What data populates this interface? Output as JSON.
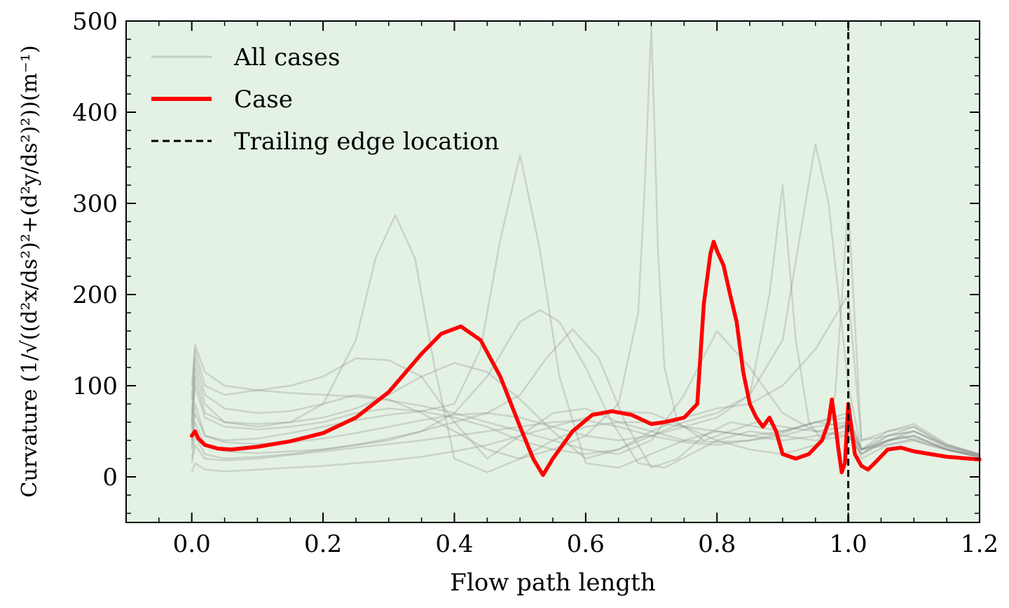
{
  "chart_data": {
    "type": "line",
    "xlabel": "Flow path length",
    "ylabel": "Curvature (1/√((d²x/ds²)²+(d²y/ds²)²))(m⁻¹)",
    "xlim": [
      -0.1,
      1.2
    ],
    "ylim": [
      -50,
      500
    ],
    "xticks": [
      "0.0",
      "0.2",
      "0.4",
      "0.6",
      "0.8",
      "1.0",
      "1.2"
    ],
    "yticks": [
      "0",
      "100",
      "200",
      "300",
      "400",
      "500"
    ],
    "background_color": "#e4f2e4",
    "legend_position": "upper-left",
    "legend": [
      {
        "label": "All cases",
        "style": "gray-faint-line"
      },
      {
        "label": "Case",
        "style": "red-thick-line"
      },
      {
        "label": "Trailing edge location",
        "style": "black-dashed-line"
      }
    ],
    "colors": {
      "all_cases": "#8c8c8c",
      "case": "#ff0000",
      "trailing_edge": "#000000"
    },
    "trailing_edge_x": 1.0,
    "case_series": {
      "name": "Case",
      "x": [
        0.0,
        0.005,
        0.01,
        0.02,
        0.04,
        0.06,
        0.1,
        0.15,
        0.2,
        0.25,
        0.3,
        0.35,
        0.38,
        0.41,
        0.44,
        0.47,
        0.5,
        0.52,
        0.535,
        0.55,
        0.58,
        0.61,
        0.64,
        0.67,
        0.7,
        0.72,
        0.75,
        0.77,
        0.78,
        0.79,
        0.795,
        0.8,
        0.81,
        0.82,
        0.83,
        0.84,
        0.85,
        0.86,
        0.87,
        0.88,
        0.89,
        0.9,
        0.92,
        0.94,
        0.96,
        0.97,
        0.975,
        0.98,
        0.985,
        0.99,
        0.995,
        1.0,
        1.01,
        1.02,
        1.03,
        1.04,
        1.06,
        1.08,
        1.1,
        1.15,
        1.2
      ],
      "y": [
        45,
        50,
        42,
        35,
        31,
        30,
        33,
        39,
        48,
        65,
        93,
        135,
        157,
        165,
        150,
        110,
        55,
        20,
        2,
        20,
        50,
        68,
        72,
        68,
        58,
        60,
        65,
        80,
        190,
        245,
        258,
        248,
        232,
        200,
        170,
        115,
        80,
        65,
        55,
        65,
        50,
        25,
        20,
        25,
        40,
        60,
        85,
        60,
        30,
        5,
        15,
        80,
        25,
        12,
        8,
        15,
        30,
        32,
        28,
        22,
        19
      ]
    },
    "all_cases_series": [
      {
        "x": [
          0.0,
          0.005,
          0.02,
          0.05,
          0.1,
          0.15,
          0.2,
          0.25,
          0.3,
          0.35,
          0.4,
          0.45,
          0.5,
          0.55,
          0.6,
          0.65,
          0.7,
          0.75,
          0.8,
          0.85,
          0.9,
          0.95,
          1.0,
          1.02,
          1.05,
          1.08,
          1.12,
          1.16,
          1.2
        ],
        "y": [
          85,
          140,
          100,
          90,
          95,
          100,
          110,
          130,
          128,
          110,
          60,
          20,
          45,
          70,
          75,
          60,
          50,
          40,
          38,
          40,
          45,
          55,
          60,
          30,
          35,
          45,
          35,
          28,
          25
        ]
      },
      {
        "x": [
          0.0,
          0.005,
          0.02,
          0.05,
          0.1,
          0.15,
          0.2,
          0.25,
          0.28,
          0.31,
          0.34,
          0.37,
          0.4,
          0.45,
          0.5,
          0.55,
          0.6,
          0.65,
          0.7,
          0.75,
          0.8,
          0.85,
          0.9,
          0.95,
          1.0,
          1.02,
          1.06,
          1.1,
          1.15,
          1.2
        ],
        "y": [
          60,
          120,
          80,
          60,
          55,
          60,
          80,
          150,
          240,
          287,
          240,
          120,
          20,
          5,
          20,
          40,
          55,
          60,
          60,
          55,
          50,
          45,
          50,
          60,
          55,
          25,
          40,
          45,
          30,
          22
        ]
      },
      {
        "x": [
          0.0,
          0.005,
          0.02,
          0.05,
          0.1,
          0.15,
          0.2,
          0.25,
          0.3,
          0.35,
          0.4,
          0.44,
          0.47,
          0.5,
          0.53,
          0.56,
          0.6,
          0.65,
          0.7,
          0.75,
          0.8,
          0.85,
          0.9,
          0.95,
          1.0,
          1.02,
          1.06,
          1.1,
          1.15,
          1.2
        ],
        "y": [
          40,
          70,
          45,
          40,
          42,
          48,
          55,
          62,
          68,
          72,
          80,
          140,
          260,
          353,
          250,
          110,
          15,
          10,
          25,
          40,
          50,
          45,
          40,
          45,
          50,
          30,
          35,
          40,
          30,
          22
        ]
      },
      {
        "x": [
          0.0,
          0.005,
          0.02,
          0.05,
          0.1,
          0.15,
          0.2,
          0.25,
          0.3,
          0.35,
          0.4,
          0.45,
          0.5,
          0.53,
          0.56,
          0.6,
          0.64,
          0.68,
          0.72,
          0.76,
          0.8,
          0.85,
          0.9,
          0.95,
          1.0,
          1.02,
          1.06,
          1.1,
          1.15,
          1.2
        ],
        "y": [
          20,
          45,
          25,
          20,
          22,
          25,
          30,
          35,
          40,
          50,
          70,
          110,
          170,
          183,
          170,
          120,
          60,
          15,
          10,
          25,
          40,
          50,
          45,
          40,
          45,
          25,
          45,
          50,
          35,
          24
        ]
      },
      {
        "x": [
          0.0,
          0.005,
          0.02,
          0.05,
          0.1,
          0.15,
          0.2,
          0.25,
          0.3,
          0.35,
          0.4,
          0.45,
          0.5,
          0.54,
          0.58,
          0.62,
          0.66,
          0.7,
          0.74,
          0.78,
          0.82,
          0.86,
          0.9,
          0.95,
          1.0,
          1.02,
          1.06,
          1.1,
          1.15,
          1.2
        ],
        "y": [
          30,
          60,
          35,
          28,
          26,
          28,
          30,
          35,
          42,
          50,
          60,
          70,
          90,
          130,
          162,
          130,
          60,
          10,
          20,
          45,
          60,
          55,
          50,
          60,
          70,
          30,
          50,
          55,
          35,
          25
        ]
      },
      {
        "x": [
          0.0,
          0.005,
          0.02,
          0.05,
          0.1,
          0.15,
          0.2,
          0.25,
          0.3,
          0.35,
          0.4,
          0.45,
          0.5,
          0.55,
          0.6,
          0.65,
          0.68,
          0.69,
          0.7,
          0.705,
          0.71,
          0.72,
          0.74,
          0.78,
          0.82,
          0.86,
          0.9,
          0.95,
          1.0,
          1.02,
          1.06,
          1.1,
          1.15,
          1.2
        ],
        "y": [
          70,
          130,
          90,
          75,
          70,
          72,
          80,
          90,
          85,
          70,
          50,
          30,
          20,
          30,
          45,
          80,
          180,
          320,
          495,
          380,
          250,
          120,
          60,
          40,
          50,
          60,
          55,
          50,
          55,
          30,
          40,
          45,
          30,
          22
        ]
      },
      {
        "x": [
          0.0,
          0.005,
          0.02,
          0.05,
          0.1,
          0.15,
          0.2,
          0.25,
          0.3,
          0.35,
          0.4,
          0.45,
          0.5,
          0.55,
          0.6,
          0.65,
          0.7,
          0.75,
          0.8,
          0.85,
          0.9,
          0.93,
          0.95,
          0.97,
          1.0,
          1.02,
          1.06,
          1.1,
          1.15,
          1.2
        ],
        "y": [
          50,
          100,
          65,
          55,
          52,
          55,
          60,
          70,
          75,
          72,
          65,
          55,
          40,
          30,
          25,
          30,
          45,
          60,
          70,
          90,
          150,
          280,
          365,
          300,
          100,
          30,
          45,
          50,
          32,
          23
        ]
      },
      {
        "x": [
          0.0,
          0.005,
          0.02,
          0.05,
          0.1,
          0.15,
          0.2,
          0.25,
          0.3,
          0.35,
          0.4,
          0.45,
          0.5,
          0.55,
          0.6,
          0.65,
          0.7,
          0.75,
          0.8,
          0.85,
          0.88,
          0.9,
          0.92,
          0.94,
          0.96,
          0.98,
          1.0,
          1.02,
          1.06,
          1.1,
          1.15,
          1.2
        ],
        "y": [
          35,
          80,
          45,
          38,
          36,
          38,
          42,
          48,
          55,
          62,
          68,
          70,
          65,
          55,
          45,
          40,
          45,
          55,
          65,
          90,
          200,
          320,
          150,
          60,
          40,
          90,
          300,
          40,
          45,
          55,
          33,
          24
        ]
      },
      {
        "x": [
          0.0,
          0.005,
          0.02,
          0.05,
          0.1,
          0.15,
          0.2,
          0.25,
          0.3,
          0.35,
          0.4,
          0.45,
          0.5,
          0.55,
          0.6,
          0.65,
          0.7,
          0.75,
          0.8,
          0.85,
          0.9,
          0.95,
          1.0,
          1.02,
          1.06,
          1.1,
          1.15,
          1.2
        ],
        "y": [
          15,
          35,
          20,
          18,
          20,
          24,
          28,
          32,
          36,
          40,
          45,
          50,
          55,
          60,
          62,
          55,
          45,
          38,
          35,
          40,
          48,
          60,
          65,
          30,
          40,
          45,
          30,
          22
        ]
      },
      {
        "x": [
          0.0,
          0.005,
          0.02,
          0.05,
          0.1,
          0.15,
          0.2,
          0.25,
          0.3,
          0.35,
          0.4,
          0.45,
          0.5,
          0.55,
          0.6,
          0.65,
          0.7,
          0.75,
          0.8,
          0.85,
          0.9,
          0.95,
          1.0,
          1.02,
          1.06,
          1.1,
          1.15,
          1.2
        ],
        "y": [
          100,
          145,
          115,
          100,
          95,
          92,
          90,
          88,
          84,
          78,
          70,
          60,
          50,
          40,
          30,
          25,
          40,
          90,
          160,
          120,
          70,
          50,
          45,
          25,
          40,
          50,
          34,
          24
        ]
      },
      {
        "x": [
          0.0,
          0.005,
          0.02,
          0.05,
          0.1,
          0.15,
          0.2,
          0.25,
          0.3,
          0.35,
          0.4,
          0.45,
          0.5,
          0.55,
          0.6,
          0.65,
          0.7,
          0.75,
          0.8,
          0.85,
          0.9,
          0.95,
          1.0,
          1.02,
          1.06,
          1.1,
          1.15,
          1.2
        ],
        "y": [
          5,
          15,
          8,
          6,
          8,
          10,
          12,
          15,
          18,
          22,
          28,
          35,
          45,
          55,
          65,
          72,
          70,
          55,
          40,
          30,
          25,
          35,
          60,
          20,
          35,
          42,
          30,
          21
        ]
      },
      {
        "x": [
          0.0,
          0.005,
          0.02,
          0.05,
          0.1,
          0.15,
          0.2,
          0.25,
          0.3,
          0.35,
          0.4,
          0.45,
          0.5,
          0.55,
          0.6,
          0.65,
          0.7,
          0.75,
          0.8,
          0.85,
          0.9,
          0.95,
          1.0,
          1.02,
          1.06,
          1.1,
          1.15,
          1.2
        ],
        "y": [
          55,
          110,
          70,
          60,
          58,
          60,
          65,
          75,
          90,
          110,
          125,
          115,
          85,
          50,
          20,
          30,
          50,
          65,
          75,
          80,
          100,
          140,
          200,
          40,
          50,
          58,
          36,
          25
        ]
      }
    ]
  }
}
